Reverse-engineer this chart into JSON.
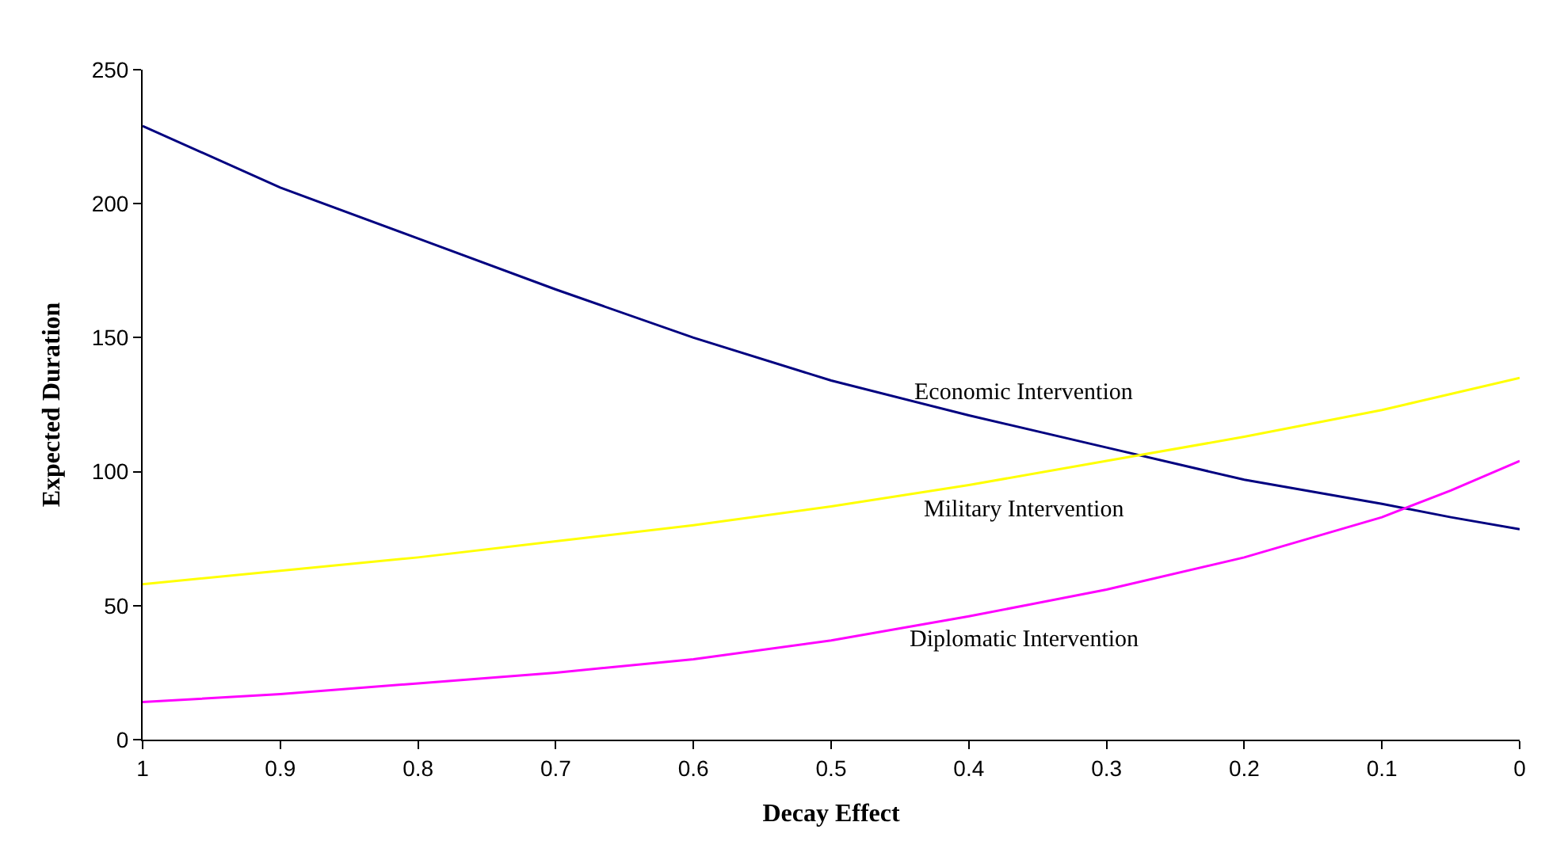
{
  "chart_data": {
    "type": "line",
    "xlabel": "Decay Effect",
    "ylabel": "Expected Duration",
    "x": [
      1,
      0.9,
      0.8,
      0.7,
      0.6,
      0.5,
      0.4,
      0.3,
      0.2,
      0.1,
      0.05,
      0
    ],
    "series": [
      {
        "name": "Economic Intervention",
        "color": "#000080",
        "values": [
          229,
          206,
          187,
          168,
          150,
          134,
          121,
          109,
          97,
          88,
          83,
          78.5
        ]
      },
      {
        "name": "Military Intervention",
        "color": "#ffff00",
        "values": [
          58,
          63,
          68,
          74,
          80,
          87,
          95,
          104,
          113,
          123,
          129,
          135
        ]
      },
      {
        "name": "Diplomatic Intervention",
        "color": "#ff00ff",
        "values": [
          14,
          17,
          21,
          25,
          30,
          37,
          46,
          56,
          68,
          83,
          93,
          104
        ]
      }
    ],
    "xlim": [
      1,
      0
    ],
    "xticks": [
      1,
      0.9,
      0.8,
      0.7,
      0.6,
      0.5,
      0.4,
      0.3,
      0.2,
      0.1,
      0
    ],
    "ylim": [
      0,
      250
    ],
    "yticks": [
      0,
      50,
      100,
      150,
      200,
      250
    ],
    "legend": false,
    "marker": "none",
    "line_style": "solid"
  }
}
